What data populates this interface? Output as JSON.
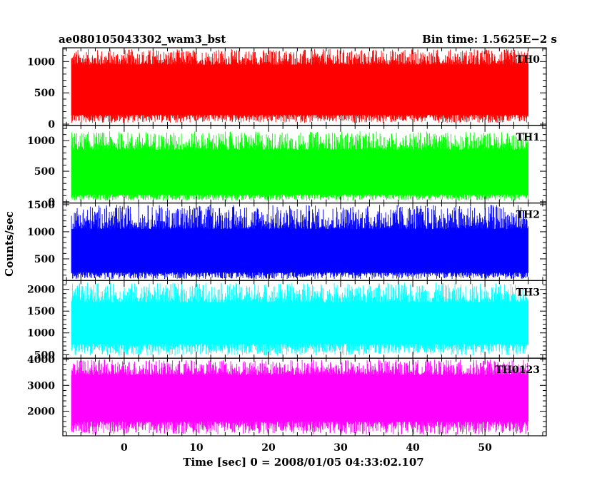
{
  "header": {
    "left_title": "ae080105043302_wam3_bst",
    "bin_time": "Bin time: 1.5625E−2 s"
  },
  "chart_data": {
    "type": "line",
    "xlabel": "Time [sec] 0 = 2008/01/05 04:33:02.107",
    "ylabel": "Counts/sec",
    "xlim": [
      -8.5,
      58.5
    ],
    "x_ticks": [
      0,
      10,
      20,
      30,
      40,
      50
    ],
    "data_x_range": [
      -7.3,
      56.0
    ],
    "bin_time": 0.015625,
    "panels": [
      {
        "name": "TH0",
        "color": "#ff0000",
        "ylim": [
          -20,
          1220
        ],
        "y_ticks": [
          0,
          500,
          1000
        ],
        "typical_range": [
          150,
          950
        ],
        "envelope_range": [
          20,
          1200
        ]
      },
      {
        "name": "TH1",
        "color": "#00ff00",
        "ylim": [
          -20,
          1250
        ],
        "y_ticks": [
          0,
          500,
          1000
        ],
        "typical_range": [
          120,
          850
        ],
        "envelope_range": [
          20,
          1150
        ]
      },
      {
        "name": "TH2",
        "color": "#0000ff",
        "ylim": [
          100,
          1530
        ],
        "y_ticks": [
          500,
          1000,
          1500
        ],
        "typical_range": [
          250,
          1050
        ],
        "envelope_range": [
          130,
          1500
        ]
      },
      {
        "name": "TH3",
        "color": "#00ffff",
        "ylim": [
          420,
          2200
        ],
        "y_ticks": [
          500,
          1000,
          1500,
          2000
        ],
        "typical_range": [
          750,
          1700
        ],
        "envelope_range": [
          480,
          2150
        ]
      },
      {
        "name": "TH0123",
        "color": "#ff00ff",
        "ylim": [
          1050,
          4050
        ],
        "y_ticks": [
          2000,
          3000,
          4000
        ],
        "typical_range": [
          1600,
          3400
        ],
        "envelope_range": [
          1100,
          4000
        ]
      }
    ]
  }
}
